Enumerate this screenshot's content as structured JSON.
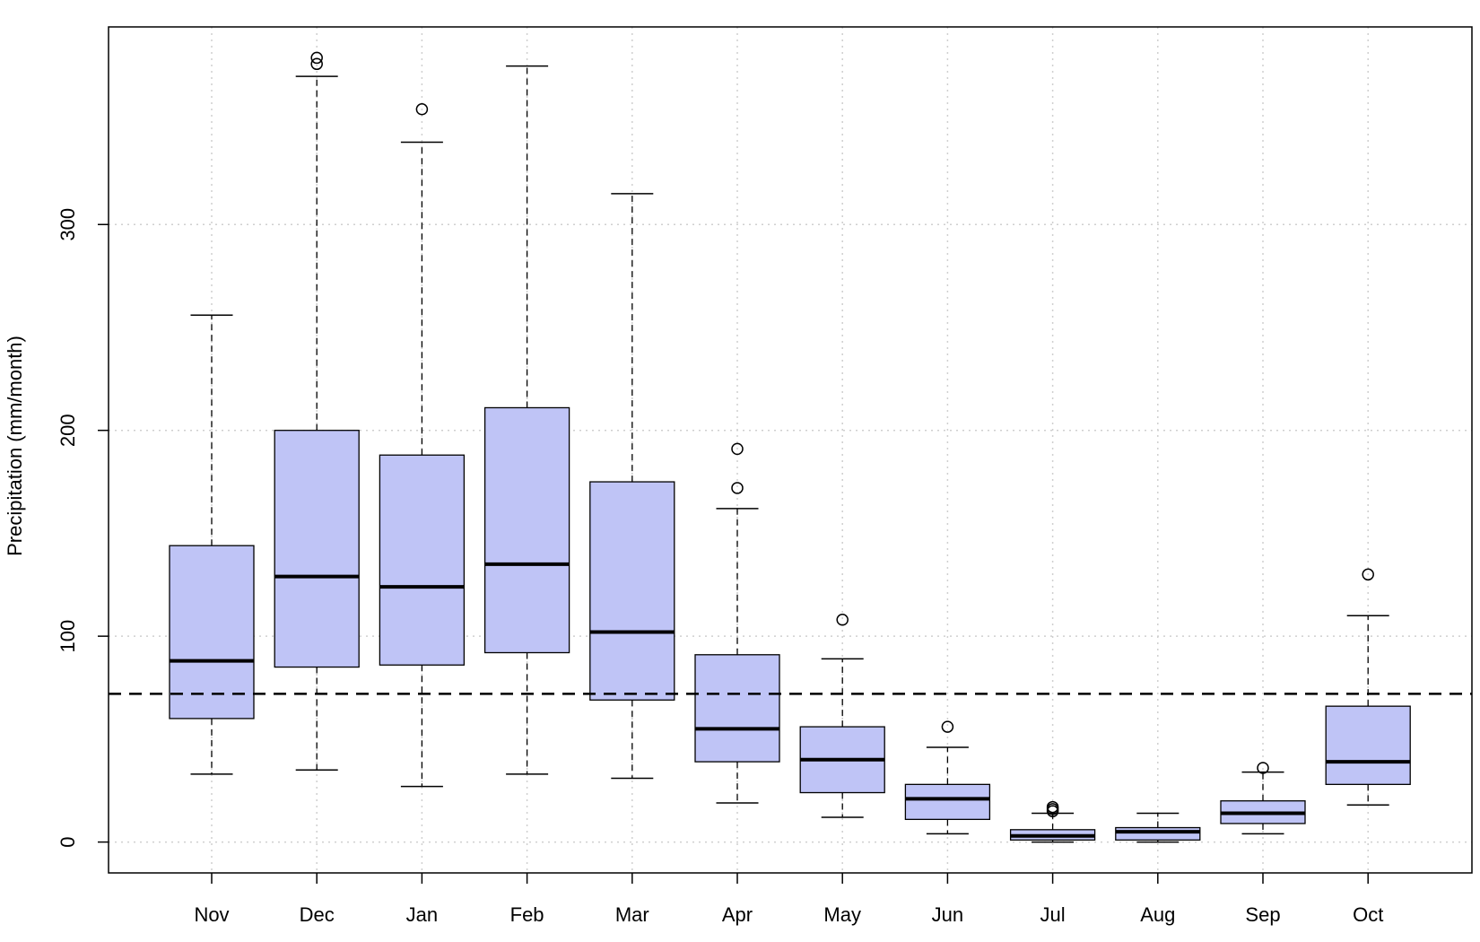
{
  "chart_data": {
    "type": "boxplot",
    "title": "",
    "xlabel": "",
    "ylabel": "Precipitation (mm/month)",
    "ylim": [
      -15,
      396
    ],
    "yticks": [
      0,
      100,
      200,
      300
    ],
    "grid": true,
    "box_fill": "#bfc4f6",
    "reference_line": {
      "y": 72,
      "style": "dashed"
    },
    "categories": [
      "Nov",
      "Dec",
      "Jan",
      "Feb",
      "Mar",
      "Apr",
      "May",
      "Jun",
      "Jul",
      "Aug",
      "Sep",
      "Oct"
    ],
    "boxes": [
      {
        "month": "Nov",
        "whisker_low": 33,
        "q1": 60,
        "median": 88,
        "q3": 144,
        "whisker_high": 256,
        "outliers": []
      },
      {
        "month": "Dec",
        "whisker_low": 35,
        "q1": 85,
        "median": 129,
        "q3": 200,
        "whisker_high": 372,
        "outliers": [
          378,
          381
        ]
      },
      {
        "month": "Jan",
        "whisker_low": 27,
        "q1": 86,
        "median": 124,
        "q3": 188,
        "whisker_high": 340,
        "outliers": [
          356
        ]
      },
      {
        "month": "Feb",
        "whisker_low": 33,
        "q1": 92,
        "median": 135,
        "q3": 211,
        "whisker_high": 377,
        "outliers": []
      },
      {
        "month": "Mar",
        "whisker_low": 31,
        "q1": 69,
        "median": 102,
        "q3": 175,
        "whisker_high": 315,
        "outliers": []
      },
      {
        "month": "Apr",
        "whisker_low": 19,
        "q1": 39,
        "median": 55,
        "q3": 91,
        "whisker_high": 162,
        "outliers": [
          172,
          191
        ]
      },
      {
        "month": "May",
        "whisker_low": 12,
        "q1": 24,
        "median": 40,
        "q3": 56,
        "whisker_high": 89,
        "outliers": [
          108
        ]
      },
      {
        "month": "Jun",
        "whisker_low": 4,
        "q1": 11,
        "median": 21,
        "q3": 28,
        "whisker_high": 46,
        "outliers": [
          56
        ]
      },
      {
        "month": "Jul",
        "whisker_low": 0,
        "q1": 1,
        "median": 3,
        "q3": 6,
        "whisker_high": 14,
        "outliers": [
          15,
          16,
          17
        ]
      },
      {
        "month": "Aug",
        "whisker_low": 0,
        "q1": 1,
        "median": 5,
        "q3": 7,
        "whisker_high": 14,
        "outliers": []
      },
      {
        "month": "Sep",
        "whisker_low": 4,
        "q1": 9,
        "median": 14,
        "q3": 20,
        "whisker_high": 34,
        "outliers": [
          36
        ]
      },
      {
        "month": "Oct",
        "whisker_low": 18,
        "q1": 28,
        "median": 39,
        "q3": 66,
        "whisker_high": 110,
        "outliers": [
          130
        ]
      }
    ]
  }
}
